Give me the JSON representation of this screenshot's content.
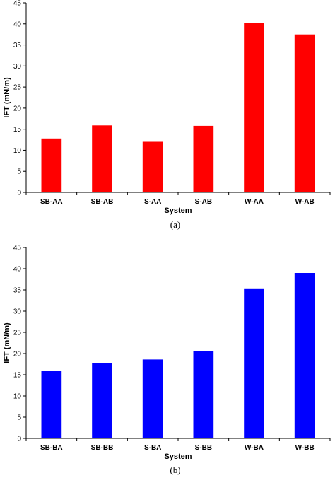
{
  "chart_data": [
    {
      "type": "bar",
      "caption": "(a)",
      "categories": [
        "SB-AA",
        "SB-AB",
        "S-AA",
        "S-AB",
        "W-AA",
        "W-AB"
      ],
      "values": [
        12.8,
        15.9,
        12.0,
        15.8,
        40.2,
        37.5
      ],
      "xlabel": "System",
      "ylabel": "IFT (mN/m)",
      "ylim": [
        0,
        45
      ],
      "yticks": [
        0,
        5,
        10,
        15,
        20,
        25,
        30,
        35,
        40,
        45
      ],
      "color": "#ff0000",
      "grid": false,
      "legend": false
    },
    {
      "type": "bar",
      "caption": "(b)",
      "categories": [
        "SB-BA",
        "SB-BB",
        "S-BA",
        "S-BB",
        "W-BA",
        "W-BB"
      ],
      "values": [
        15.9,
        17.8,
        18.6,
        20.6,
        35.2,
        39.0
      ],
      "xlabel": "System",
      "ylabel": "IFT (mN/m)",
      "ylim": [
        0,
        45
      ],
      "yticks": [
        0,
        5,
        10,
        15,
        20,
        25,
        30,
        35,
        40,
        45
      ],
      "color": "#0000ff",
      "grid": false,
      "legend": false
    }
  ]
}
